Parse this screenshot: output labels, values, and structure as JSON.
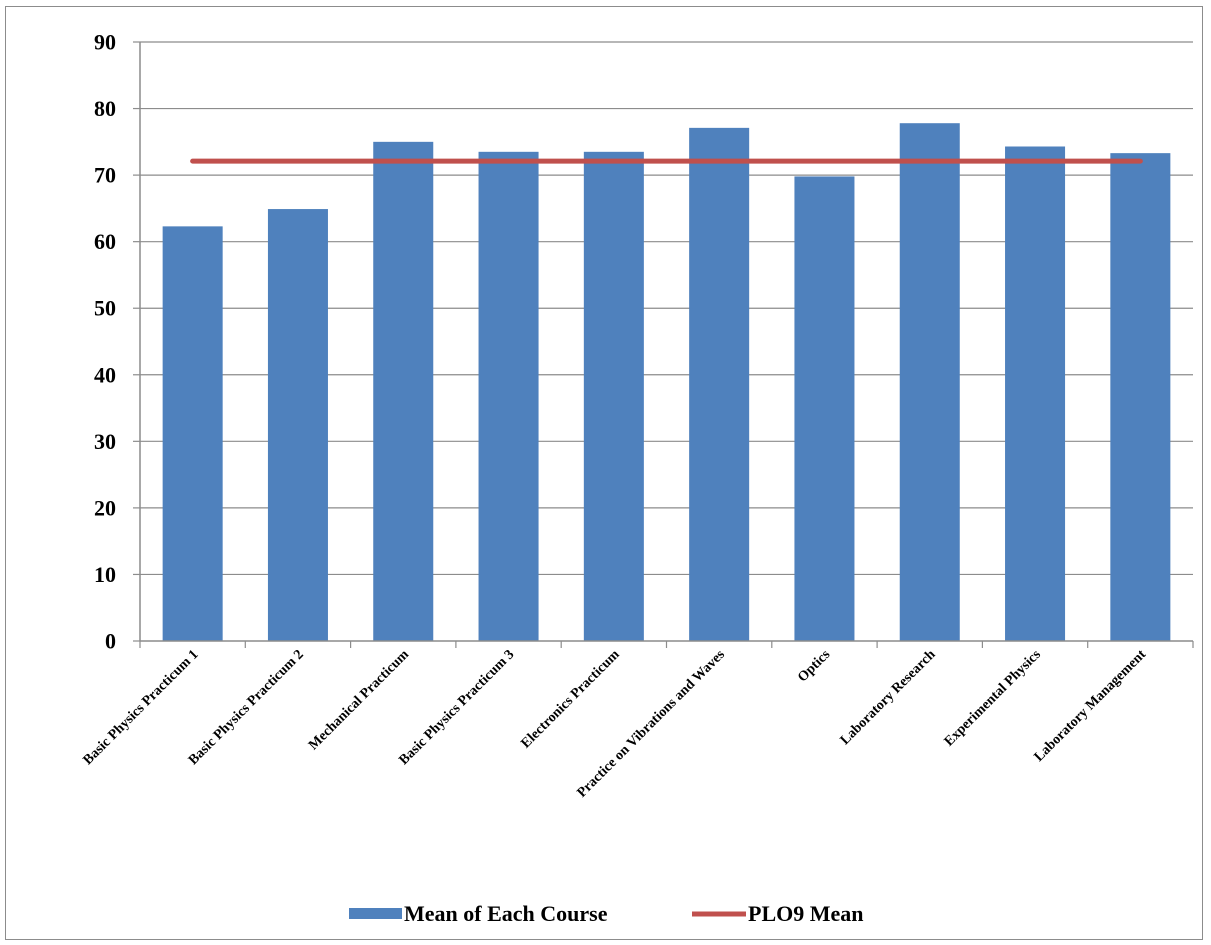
{
  "chart_data": {
    "type": "bar",
    "categories": [
      "Basic Physics Practicum 1",
      "Basic Physics Practicum 2",
      "Mechanical Practicum",
      "Basic Physics Practicum 3",
      "Electronics Practicum",
      "Practice on Vibrations and Waves",
      "Optics",
      "Laboratory Research",
      "Experimental Physics",
      "Laboratory Management"
    ],
    "series": [
      {
        "name": "Mean of Each Course",
        "type": "bar",
        "color": "#4f81bd",
        "values": [
          62.3,
          64.9,
          75.0,
          73.5,
          73.5,
          77.1,
          69.8,
          77.8,
          74.3,
          73.3
        ]
      },
      {
        "name": "PLO9 Mean",
        "type": "line",
        "color": "#c0504d",
        "values": [
          72.1,
          72.1,
          72.1,
          72.1,
          72.1,
          72.1,
          72.1,
          72.1,
          72.1,
          72.1
        ]
      }
    ],
    "yticks": [
      "0",
      "10",
      "20",
      "30",
      "40",
      "50",
      "60",
      "70",
      "80",
      "90"
    ],
    "ylim": [
      0,
      90
    ],
    "grid": true,
    "legend": "bottom"
  }
}
